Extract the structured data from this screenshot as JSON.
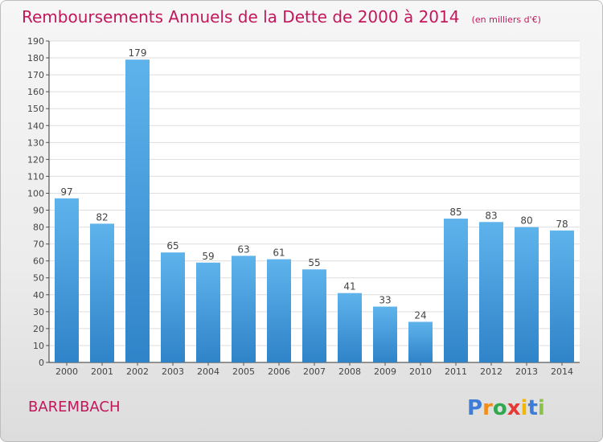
{
  "title": "Remboursements Annuels de la Dette de 2000 à 2014",
  "unit_note": "(en milliers d'€)",
  "commune": "BAREMBACH",
  "brand": "Proxiti",
  "colors": {
    "title": "#c2185b",
    "bar_light": "#5fb3ec",
    "bar_dark": "#2f83c8"
  },
  "chart_data": {
    "type": "bar",
    "title": "Remboursements Annuels de la Dette de 2000 à 2014",
    "subtitle": "(en milliers d'€)",
    "categories": [
      "2000",
      "2001",
      "2002",
      "2003",
      "2004",
      "2005",
      "2006",
      "2007",
      "2008",
      "2009",
      "2010",
      "2011",
      "2012",
      "2013",
      "2014"
    ],
    "values": [
      97,
      82,
      179,
      65,
      59,
      63,
      61,
      55,
      41,
      33,
      24,
      85,
      83,
      80,
      78
    ],
    "ylim": [
      0,
      190
    ],
    "yticks": [
      0,
      10,
      20,
      30,
      40,
      50,
      60,
      70,
      80,
      90,
      100,
      110,
      120,
      130,
      140,
      150,
      160,
      170,
      180,
      190
    ],
    "grid": true,
    "xlabel": "",
    "ylabel": ""
  }
}
